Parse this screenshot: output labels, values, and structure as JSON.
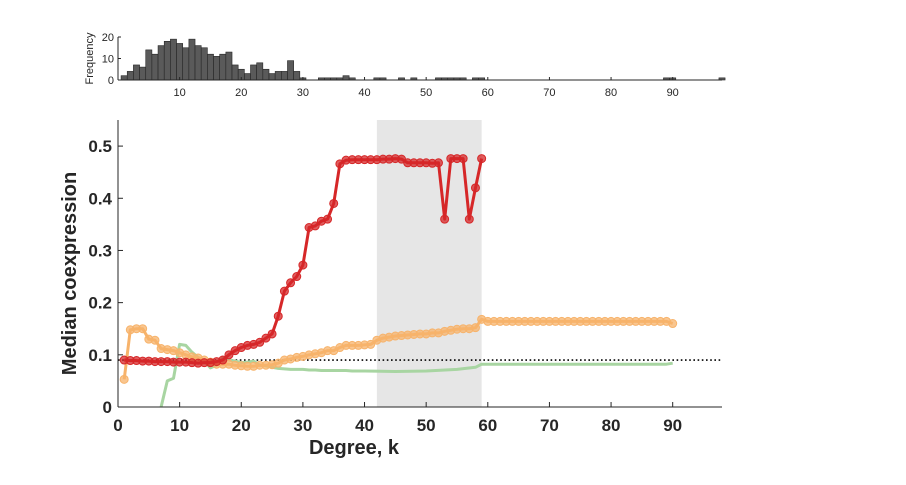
{
  "chart_data": [
    {
      "type": "bar",
      "ylabel": "Frequency",
      "xlim": [
        0,
        98
      ],
      "ylim": [
        0,
        20
      ],
      "xticks": [
        10,
        20,
        30,
        40,
        50,
        60,
        70,
        80,
        90
      ],
      "yticks": [
        0,
        10,
        20
      ],
      "x": [
        1,
        2,
        3,
        4,
        5,
        6,
        7,
        8,
        9,
        10,
        11,
        12,
        13,
        14,
        15,
        16,
        17,
        18,
        19,
        20,
        21,
        22,
        23,
        24,
        25,
        26,
        27,
        28,
        29,
        30,
        31,
        32,
        33,
        34,
        35,
        36,
        37,
        38,
        39,
        40,
        41,
        42,
        43,
        44,
        45,
        46,
        47,
        48,
        49,
        50,
        51,
        52,
        53,
        54,
        55,
        56,
        57,
        58,
        59,
        60,
        61,
        62,
        63,
        64,
        65,
        66,
        67,
        68,
        69,
        70,
        71,
        72,
        73,
        74,
        75,
        76,
        77,
        78,
        79,
        80,
        81,
        82,
        83,
        84,
        85,
        86,
        87,
        88,
        89,
        90,
        91,
        92,
        93,
        94,
        95,
        96,
        97,
        98
      ],
      "values": [
        2,
        4,
        7,
        6,
        14,
        12,
        16,
        18,
        19,
        17,
        15,
        19,
        16,
        15,
        12,
        11,
        12,
        13,
        7,
        5,
        3,
        7,
        8,
        5,
        3,
        4,
        4,
        9,
        4,
        1,
        0,
        0,
        1,
        1,
        1,
        1,
        2,
        1,
        0,
        0,
        0,
        1,
        1,
        0,
        0,
        1,
        0,
        1,
        0,
        0,
        0,
        1,
        1,
        1,
        1,
        1,
        0,
        1,
        1,
        0,
        0,
        0,
        0,
        0,
        0,
        0,
        0,
        0,
        0,
        0,
        0,
        0,
        0,
        0,
        0,
        0,
        0,
        0,
        0,
        0,
        0,
        0,
        0,
        0,
        0,
        0,
        0,
        0,
        1,
        1,
        0,
        0,
        0,
        0,
        0,
        0,
        0,
        1
      ]
    },
    {
      "type": "line",
      "xlabel": "Degree, k",
      "ylabel": "Median coexpression",
      "xlim": [
        0,
        98
      ],
      "ylim": [
        0,
        0.55
      ],
      "xticks": [
        0,
        10,
        20,
        30,
        40,
        50,
        60,
        70,
        80,
        90
      ],
      "yticks": [
        0,
        0.1,
        0.2,
        0.3,
        0.4,
        0.5
      ],
      "shaded_region": [
        42,
        59
      ],
      "reference_line": {
        "y": 0.09,
        "style": "dotted",
        "color": "#000000"
      },
      "series": [
        {
          "color": "#d62728",
          "markers": true,
          "points": [
            [
              1,
              0.09
            ],
            [
              2,
              0.089
            ],
            [
              3,
              0.089
            ],
            [
              4,
              0.088
            ],
            [
              5,
              0.088
            ],
            [
              6,
              0.087
            ],
            [
              7,
              0.087
            ],
            [
              8,
              0.087
            ],
            [
              9,
              0.086
            ],
            [
              10,
              0.086
            ],
            [
              11,
              0.086
            ],
            [
              12,
              0.085
            ],
            [
              13,
              0.084
            ],
            [
              14,
              0.085
            ],
            [
              15,
              0.085
            ],
            [
              16,
              0.087
            ],
            [
              17,
              0.09
            ],
            [
              18,
              0.1
            ],
            [
              19,
              0.108
            ],
            [
              20,
              0.114
            ],
            [
              21,
              0.118
            ],
            [
              22,
              0.12
            ],
            [
              23,
              0.124
            ],
            [
              24,
              0.132
            ],
            [
              25,
              0.14
            ],
            [
              26,
              0.174
            ],
            [
              27,
              0.222
            ],
            [
              28,
              0.238
            ],
            [
              29,
              0.25
            ],
            [
              30,
              0.272
            ],
            [
              31,
              0.344
            ],
            [
              32,
              0.347
            ],
            [
              33,
              0.356
            ],
            [
              34,
              0.36
            ],
            [
              35,
              0.39
            ],
            [
              36,
              0.466
            ],
            [
              37,
              0.473
            ],
            [
              38,
              0.474
            ],
            [
              39,
              0.474
            ],
            [
              40,
              0.474
            ],
            [
              41,
              0.474
            ],
            [
              42,
              0.474
            ],
            [
              43,
              0.475
            ],
            [
              44,
              0.475
            ],
            [
              45,
              0.476
            ],
            [
              46,
              0.475
            ],
            [
              47,
              0.468
            ],
            [
              48,
              0.468
            ],
            [
              49,
              0.468
            ],
            [
              50,
              0.468
            ],
            [
              51,
              0.467
            ],
            [
              52,
              0.468
            ],
            [
              53,
              0.36
            ],
            [
              54,
              0.476
            ],
            [
              55,
              0.476
            ],
            [
              56,
              0.476
            ],
            [
              57,
              0.36
            ],
            [
              58,
              0.42
            ],
            [
              59,
              0.476
            ]
          ]
        },
        {
          "color": "#f7b36b",
          "markers": true,
          "points": [
            [
              1,
              0.053
            ],
            [
              2,
              0.148
            ],
            [
              3,
              0.15
            ],
            [
              4,
              0.15
            ],
            [
              5,
              0.13
            ],
            [
              6,
              0.128
            ],
            [
              7,
              0.112
            ],
            [
              8,
              0.11
            ],
            [
              9,
              0.108
            ],
            [
              10,
              0.104
            ],
            [
              11,
              0.1
            ],
            [
              12,
              0.096
            ],
            [
              13,
              0.094
            ],
            [
              14,
              0.09
            ],
            [
              15,
              0.086
            ],
            [
              16,
              0.082
            ],
            [
              17,
              0.082
            ],
            [
              18,
              0.082
            ],
            [
              19,
              0.08
            ],
            [
              20,
              0.079
            ],
            [
              21,
              0.078
            ],
            [
              22,
              0.078
            ],
            [
              23,
              0.08
            ],
            [
              24,
              0.08
            ],
            [
              25,
              0.081
            ],
            [
              26,
              0.084
            ],
            [
              27,
              0.09
            ],
            [
              28,
              0.092
            ],
            [
              29,
              0.095
            ],
            [
              30,
              0.097
            ],
            [
              31,
              0.1
            ],
            [
              32,
              0.102
            ],
            [
              33,
              0.104
            ],
            [
              34,
              0.108
            ],
            [
              35,
              0.108
            ],
            [
              36,
              0.114
            ],
            [
              37,
              0.118
            ],
            [
              38,
              0.118
            ],
            [
              39,
              0.118
            ],
            [
              40,
              0.119
            ],
            [
              41,
              0.12
            ],
            [
              42,
              0.128
            ],
            [
              43,
              0.132
            ],
            [
              44,
              0.134
            ],
            [
              45,
              0.136
            ],
            [
              46,
              0.137
            ],
            [
              47,
              0.138
            ],
            [
              48,
              0.139
            ],
            [
              49,
              0.14
            ],
            [
              50,
              0.14
            ],
            [
              51,
              0.142
            ],
            [
              52,
              0.142
            ],
            [
              53,
              0.145
            ],
            [
              54,
              0.147
            ],
            [
              55,
              0.149
            ],
            [
              56,
              0.15
            ],
            [
              57,
              0.15
            ],
            [
              58,
              0.152
            ],
            [
              59,
              0.168
            ],
            [
              60,
              0.164
            ],
            [
              61,
              0.164
            ],
            [
              62,
              0.164
            ],
            [
              63,
              0.164
            ],
            [
              64,
              0.164
            ],
            [
              65,
              0.164
            ],
            [
              66,
              0.164
            ],
            [
              67,
              0.164
            ],
            [
              68,
              0.164
            ],
            [
              69,
              0.164
            ],
            [
              70,
              0.164
            ],
            [
              71,
              0.164
            ],
            [
              72,
              0.164
            ],
            [
              73,
              0.164
            ],
            [
              74,
              0.164
            ],
            [
              75,
              0.164
            ],
            [
              76,
              0.164
            ],
            [
              77,
              0.164
            ],
            [
              78,
              0.164
            ],
            [
              79,
              0.164
            ],
            [
              80,
              0.164
            ],
            [
              81,
              0.164
            ],
            [
              82,
              0.164
            ],
            [
              83,
              0.164
            ],
            [
              84,
              0.164
            ],
            [
              85,
              0.164
            ],
            [
              86,
              0.164
            ],
            [
              87,
              0.164
            ],
            [
              88,
              0.164
            ],
            [
              89,
              0.164
            ],
            [
              90,
              0.16
            ]
          ]
        },
        {
          "color": "#a8d5a2",
          "markers": false,
          "points": [
            [
              7,
              0.0
            ],
            [
              8,
              0.05
            ],
            [
              9,
              0.055
            ],
            [
              10,
              0.12
            ],
            [
              11,
              0.118
            ],
            [
              12,
              0.105
            ],
            [
              13,
              0.095
            ],
            [
              14,
              0.088
            ],
            [
              15,
              0.075
            ],
            [
              16,
              0.08
            ],
            [
              17,
              0.094
            ],
            [
              18,
              0.09
            ],
            [
              19,
              0.088
            ],
            [
              20,
              0.085
            ],
            [
              21,
              0.086
            ],
            [
              22,
              0.088
            ],
            [
              23,
              0.08
            ],
            [
              24,
              0.079
            ],
            [
              25,
              0.076
            ],
            [
              26,
              0.074
            ],
            [
              27,
              0.073
            ],
            [
              28,
              0.072
            ],
            [
              29,
              0.072
            ],
            [
              30,
              0.072
            ],
            [
              31,
              0.071
            ],
            [
              32,
              0.071
            ],
            [
              33,
              0.07
            ],
            [
              34,
              0.07
            ],
            [
              35,
              0.07
            ],
            [
              36,
              0.07
            ],
            [
              37,
              0.07
            ],
            [
              38,
              0.069
            ],
            [
              39,
              0.069
            ],
            [
              40,
              0.069
            ],
            [
              45,
              0.068
            ],
            [
              50,
              0.069
            ],
            [
              55,
              0.072
            ],
            [
              58,
              0.076
            ],
            [
              59,
              0.082
            ],
            [
              60,
              0.082
            ],
            [
              70,
              0.082
            ],
            [
              80,
              0.082
            ],
            [
              89,
              0.082
            ],
            [
              90,
              0.084
            ]
          ]
        }
      ]
    }
  ]
}
